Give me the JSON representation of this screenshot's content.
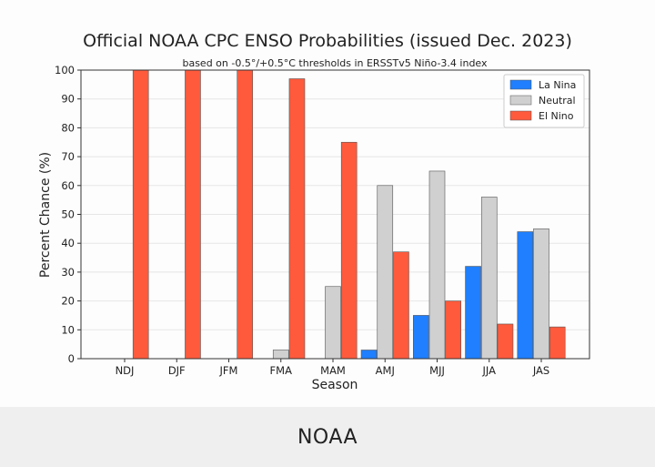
{
  "caption": "NOAA",
  "chart_data": {
    "type": "bar",
    "title": "Official NOAA CPC ENSO Probabilities (issued Dec. 2023)",
    "subtitle": "based on -0.5°/+0.5°C thresholds in ERSSTv5 Niño-3.4 index",
    "xlabel": "Season",
    "ylabel": "Percent Chance (%)",
    "ylim": [
      0,
      100
    ],
    "yticks": [
      0,
      10,
      20,
      30,
      40,
      50,
      60,
      70,
      80,
      90,
      100
    ],
    "grid": "y",
    "legend_position": "top-right",
    "categories": [
      "NDJ",
      "DJF",
      "JFM",
      "FMA",
      "MAM",
      "AMJ",
      "MJJ",
      "JJA",
      "JAS"
    ],
    "series": [
      {
        "name": "La Nina",
        "color": "#1f7fff",
        "values": [
          0,
          0,
          0,
          0,
          0,
          3,
          15,
          32,
          44
        ]
      },
      {
        "name": "Neutral",
        "color": "#d0d0d0",
        "values": [
          0,
          0,
          0,
          3,
          25,
          60,
          65,
          56,
          45
        ]
      },
      {
        "name": "El Nino",
        "color": "#ff5a3c",
        "values": [
          100,
          100,
          100,
          97,
          75,
          37,
          20,
          12,
          11
        ]
      }
    ]
  }
}
